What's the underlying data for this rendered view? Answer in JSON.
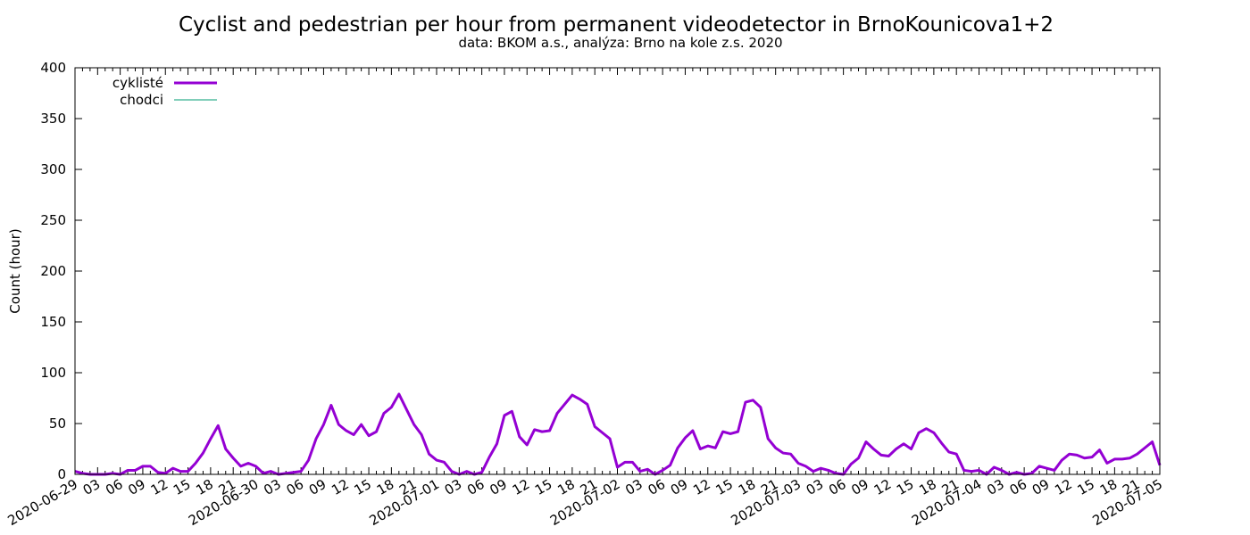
{
  "chart_data": {
    "type": "line",
    "title": "Cyclist and pedestrian per hour from permanent videodetector in BrnoKounicova1+2",
    "subtitle": "data: BKOM a.s., analýza: Brno na kole z.s. 2020",
    "xlabel": "",
    "ylabel": "Count (hour)",
    "ylim": [
      0,
      400
    ],
    "yticks": [
      0,
      50,
      100,
      150,
      200,
      250,
      300,
      350,
      400
    ],
    "xlim": [
      "2020-06-29 00:00",
      "2020-07-05 00:00"
    ],
    "xticks": [
      "2020-06-29",
      "03",
      "06",
      "09",
      "12",
      "15",
      "18",
      "21",
      "2020-06-30",
      "03",
      "06",
      "09",
      "12",
      "15",
      "18",
      "21",
      "2020-07-01",
      "03",
      "06",
      "09",
      "12",
      "15",
      "18",
      "21",
      "2020-07-02",
      "03",
      "06",
      "09",
      "12",
      "15",
      "18",
      "21",
      "2020-07-03",
      "03",
      "06",
      "09",
      "12",
      "15",
      "18",
      "21",
      "2020-07-04",
      "03",
      "06",
      "09",
      "12",
      "15",
      "18",
      "21",
      "2020-07-05"
    ],
    "grid": false,
    "legend": "top-left",
    "series": [
      {
        "name": "cyklisté",
        "color": "#9400d3",
        "start": "2020-06-29 00:00",
        "interval_hours": 1,
        "values": [
          3,
          1,
          0,
          0,
          0,
          1,
          0,
          4,
          4,
          8,
          8,
          2,
          1,
          6,
          3,
          3,
          11,
          21,
          35,
          48,
          25,
          16,
          8,
          11,
          8,
          1,
          3,
          0,
          1,
          2,
          3,
          14,
          35,
          49,
          68,
          49,
          43,
          39,
          49,
          38,
          42,
          60,
          66,
          79,
          64,
          49,
          39,
          20,
          14,
          12,
          3,
          0,
          3,
          0,
          2,
          17,
          30,
          58,
          62,
          37,
          29,
          44,
          42,
          43,
          60,
          69,
          78,
          74,
          69,
          47,
          41,
          35,
          7,
          12,
          12,
          3,
          5,
          0,
          4,
          9,
          26,
          36,
          43,
          25,
          28,
          26,
          42,
          40,
          42,
          71,
          73,
          66,
          35,
          26,
          21,
          20,
          11,
          8,
          3,
          6,
          4,
          1,
          0,
          10,
          16,
          32,
          25,
          19,
          18,
          25,
          30,
          25,
          41,
          45,
          41,
          31,
          22,
          20,
          4,
          3,
          4,
          0,
          7,
          4,
          0,
          2,
          0,
          1,
          8,
          6,
          4,
          14,
          20,
          19,
          16,
          17,
          24,
          11,
          15,
          15,
          16,
          20,
          26,
          32,
          9
        ]
      },
      {
        "name": "chodci",
        "color": "#009e73",
        "values": []
      }
    ]
  }
}
